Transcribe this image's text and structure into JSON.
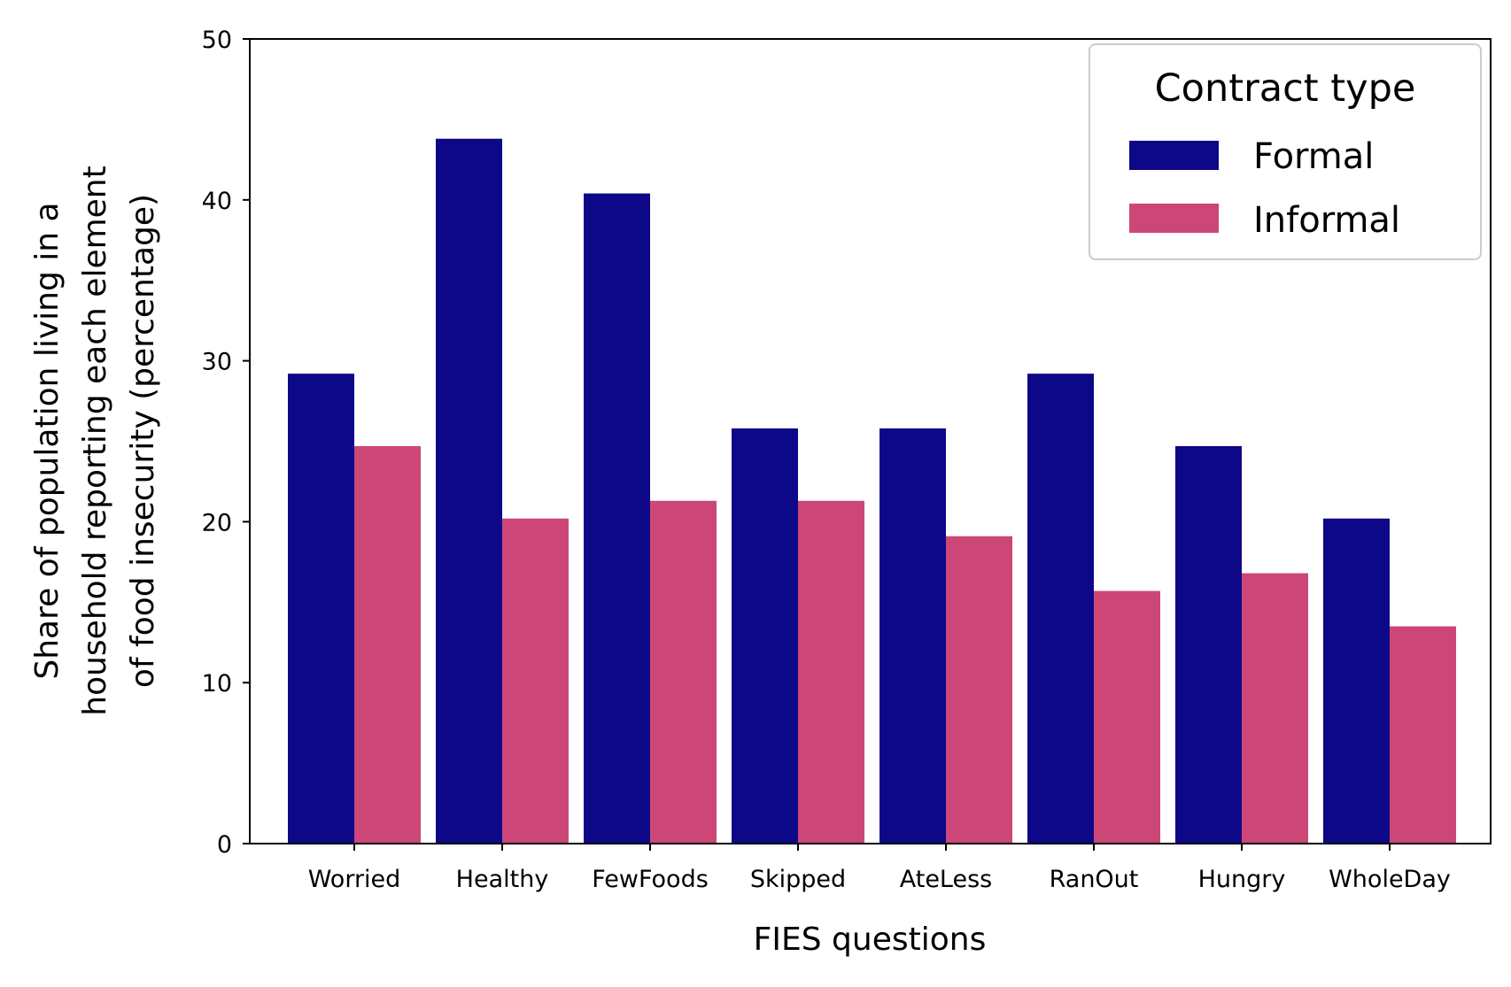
{
  "chart_data": {
    "type": "bar",
    "title": "",
    "xlabel": "FIES questions",
    "ylabel": [
      "Share of population living in a",
      "household reporting each element",
      "of food insecurity (percentage)"
    ],
    "categories": [
      "Worried",
      "Healthy",
      "FewFoods",
      "Skipped",
      "AteLess",
      "RanOut",
      "Hungry",
      "WholeDay"
    ],
    "series": [
      {
        "name": "Formal",
        "color": "#0d0887",
        "values": [
          29.2,
          43.8,
          40.4,
          25.8,
          25.8,
          29.2,
          24.7,
          20.2
        ]
      },
      {
        "name": "Informal",
        "color": "#cc4778",
        "values": [
          24.7,
          20.2,
          21.3,
          21.3,
          19.1,
          15.7,
          16.8,
          13.5
        ]
      }
    ],
    "ylim": [
      0,
      50
    ],
    "yticks": [
      0,
      10,
      20,
      30,
      40,
      50
    ],
    "grid": false,
    "legend": {
      "title": "Contract type",
      "position": "top-right"
    }
  }
}
